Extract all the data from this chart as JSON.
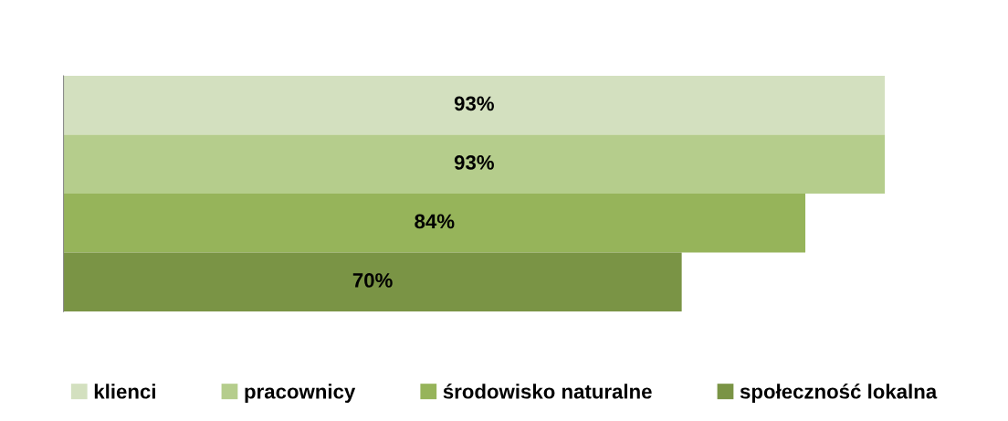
{
  "chart_data": {
    "type": "bar",
    "orientation": "horizontal",
    "categories": [
      null
    ],
    "series": [
      {
        "name": "klienci",
        "color": "#d3e0bf",
        "values": [
          93
        ],
        "value_labels": [
          "93%"
        ]
      },
      {
        "name": "pracownicy",
        "color": "#b5cd8c",
        "values": [
          93
        ],
        "value_labels": [
          "93%"
        ]
      },
      {
        "name": "środowisko naturalne",
        "color": "#96b45a",
        "values": [
          84
        ],
        "value_labels": [
          "84%"
        ]
      },
      {
        "name": "społeczność lokalna",
        "color": "#7a9445",
        "values": [
          70
        ],
        "value_labels": [
          "70%"
        ]
      }
    ],
    "legend": "bottom"
  }
}
